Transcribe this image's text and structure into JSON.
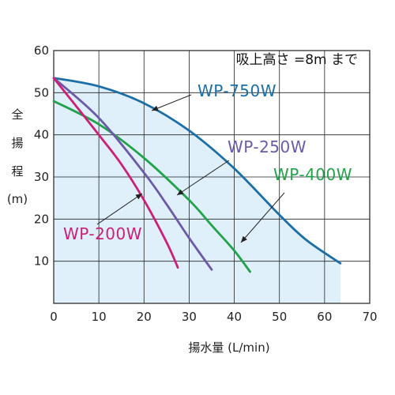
{
  "chart_data": {
    "type": "line",
    "note": "吸上高さ =8m まで",
    "xlabel": "揚水量 (L/min)",
    "ylabel_chars": [
      "全",
      "揚",
      "程",
      "(m)"
    ],
    "xlim": [
      0,
      70
    ],
    "ylim": [
      0,
      60
    ],
    "xticks": [
      0,
      10,
      20,
      30,
      40,
      50,
      60,
      70
    ],
    "yticks": [
      10,
      20,
      30,
      40,
      50,
      60
    ],
    "grid": true,
    "fill_color": "#dff0fa",
    "series": [
      {
        "name": "WP-750W",
        "color": "#1c6fa6",
        "x": [
          0,
          10,
          20,
          30,
          40,
          50,
          56,
          63.5
        ],
        "y": [
          53.5,
          51.5,
          47.5,
          41,
          32,
          21,
          15,
          9.5
        ]
      },
      {
        "name": "WP-400W",
        "color": "#22a24a",
        "x": [
          0,
          10,
          20,
          30,
          35,
          40,
          43.5
        ],
        "y": [
          48,
          42.5,
          34.5,
          24.5,
          18.5,
          12.5,
          7.5
        ]
      },
      {
        "name": "WP-250W",
        "color": "#6a5aa8",
        "x": [
          0,
          10,
          20,
          25,
          30,
          35
        ],
        "y": [
          53.5,
          44,
          31,
          23.5,
          15.5,
          8
        ]
      },
      {
        "name": "WP-200W",
        "color": "#cc1f78",
        "x": [
          0,
          10,
          15,
          20,
          25,
          27.5
        ],
        "y": [
          53.5,
          40,
          33,
          24.5,
          14.5,
          8.5
        ]
      }
    ]
  }
}
